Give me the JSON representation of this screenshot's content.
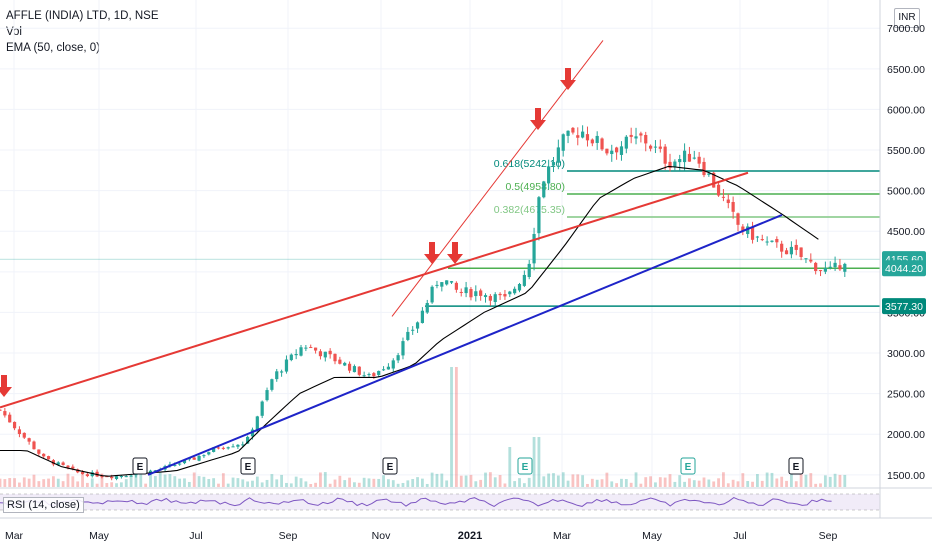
{
  "header": {
    "symbol_line": "AFFLE (INDIA) LTD, 1D, NSE",
    "vol_label": "Vol",
    "ema_label": "EMA (50, close, 0)",
    "currency": "INR"
  },
  "rsi_label": "RSI (14, close)",
  "colors": {
    "up": "#26a69a",
    "down": "#ef5350",
    "ema": "#000000",
    "red_trend": "#e53935",
    "blue_trend": "#1e24c8",
    "fib_green": "#4caf50",
    "fib_teal": "#00897b",
    "rsi_line": "#7e57c2",
    "arrow": "#e53935"
  },
  "chart_data": {
    "type": "candlestick",
    "title": "AFFLE (INDIA) LTD, 1D, NSE",
    "y_axis": {
      "ylim": [
        1350,
        7150
      ],
      "ticks": [
        1500,
        2000,
        2500,
        3000,
        3500,
        4000,
        4500,
        5000,
        5500,
        6000,
        6500,
        7000
      ],
      "tick_labels": [
        "1500.00",
        "2000.00",
        "2500.00",
        "3000.00",
        "3500.00",
        "4000.00",
        "4500.00",
        "5000.00",
        "5500.00",
        "6000.00",
        "6500.00",
        "7000.00"
      ]
    },
    "x_axis": {
      "tick_labels": [
        "Mar",
        "May",
        "Jul",
        "Sep",
        "Nov",
        "2021",
        "Mar",
        "May",
        "Jul",
        "Sep"
      ],
      "bold_label": "2021"
    },
    "price_labels": [
      {
        "value": 4155.6,
        "label": "4155.60",
        "color": "#26a69a"
      },
      {
        "value": 4044.2,
        "label": "4044.20",
        "color": "#26a69a"
      },
      {
        "value": 3577.3,
        "label": "3577.30",
        "color": "#00897b"
      }
    ],
    "fib_levels": [
      {
        "ratio": "0.618",
        "label": "0.618(5242.10)",
        "value": 5242.1,
        "color": "#00897b"
      },
      {
        "ratio": "0.5",
        "label": "0.5(4958.80)",
        "value": 4958.8,
        "color": "#4caf50"
      },
      {
        "ratio": "0.382",
        "label": "0.382(4675.35)",
        "value": 4675.35,
        "color": "#81c784"
      }
    ],
    "horizontal_levels": [
      4044.2,
      3577.3
    ],
    "earnings_markers": [
      "E",
      "E",
      "E",
      "E",
      "E",
      "E"
    ],
    "price_waypoints": [
      {
        "t": 0,
        "v": 2300
      },
      {
        "t": 0.02,
        "v": 2050
      },
      {
        "t": 0.05,
        "v": 1700
      },
      {
        "t": 0.09,
        "v": 1520
      },
      {
        "t": 0.13,
        "v": 1480
      },
      {
        "t": 0.18,
        "v": 1560
      },
      {
        "t": 0.22,
        "v": 1700
      },
      {
        "t": 0.25,
        "v": 1850
      },
      {
        "t": 0.28,
        "v": 1900
      },
      {
        "t": 0.31,
        "v": 2700
      },
      {
        "t": 0.345,
        "v": 3100
      },
      {
        "t": 0.375,
        "v": 2950
      },
      {
        "t": 0.42,
        "v": 2700
      },
      {
        "t": 0.445,
        "v": 2900
      },
      {
        "t": 0.475,
        "v": 3400
      },
      {
        "t": 0.5,
        "v": 3950
      },
      {
        "t": 0.52,
        "v": 3750
      },
      {
        "t": 0.545,
        "v": 3750
      },
      {
        "t": 0.575,
        "v": 3650
      },
      {
        "t": 0.6,
        "v": 4050
      },
      {
        "t": 0.615,
        "v": 5100
      },
      {
        "t": 0.64,
        "v": 5600
      },
      {
        "t": 0.66,
        "v": 5750
      },
      {
        "t": 0.69,
        "v": 5500
      },
      {
        "t": 0.73,
        "v": 5650
      },
      {
        "t": 0.76,
        "v": 5350
      },
      {
        "t": 0.79,
        "v": 5450
      },
      {
        "t": 0.81,
        "v": 5100
      },
      {
        "t": 0.84,
        "v": 4550
      },
      {
        "t": 0.87,
        "v": 4350
      },
      {
        "t": 0.9,
        "v": 4250
      },
      {
        "t": 0.93,
        "v": 4050
      },
      {
        "t": 0.945,
        "v": 4000
      },
      {
        "t": 0.96,
        "v": 4155
      }
    ],
    "ema_waypoints": [
      {
        "t": 0,
        "v": 1800
      },
      {
        "t": 0.03,
        "v": 1800
      },
      {
        "t": 0.07,
        "v": 1600
      },
      {
        "t": 0.12,
        "v": 1480
      },
      {
        "t": 0.2,
        "v": 1550
      },
      {
        "t": 0.27,
        "v": 1780
      },
      {
        "t": 0.3,
        "v": 2100
      },
      {
        "t": 0.34,
        "v": 2500
      },
      {
        "t": 0.38,
        "v": 2700
      },
      {
        "t": 0.43,
        "v": 2700
      },
      {
        "t": 0.47,
        "v": 2850
      },
      {
        "t": 0.5,
        "v": 3150
      },
      {
        "t": 0.55,
        "v": 3500
      },
      {
        "t": 0.6,
        "v": 3750
      },
      {
        "t": 0.64,
        "v": 4300
      },
      {
        "t": 0.68,
        "v": 4900
      },
      {
        "t": 0.72,
        "v": 5150
      },
      {
        "t": 0.76,
        "v": 5300
      },
      {
        "t": 0.8,
        "v": 5250
      },
      {
        "t": 0.84,
        "v": 5050
      },
      {
        "t": 0.89,
        "v": 4700
      },
      {
        "t": 0.93,
        "v": 4400
      }
    ]
  }
}
